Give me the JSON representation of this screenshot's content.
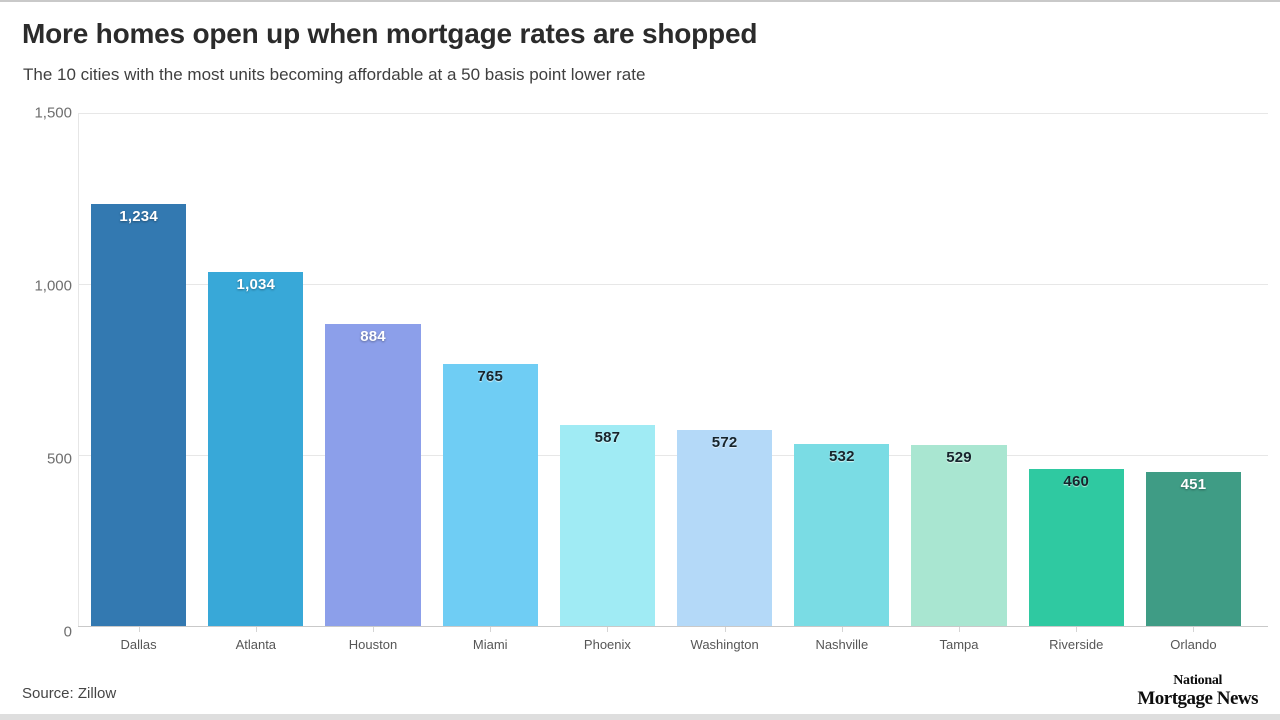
{
  "header": {
    "title": "More homes open up when mortgage rates are shopped",
    "subtitle": "The 10 cities with the most units becoming affordable at a 50 basis point lower rate"
  },
  "footer": {
    "source_label": "Source: Zillow",
    "logo_line1": "National",
    "logo_line2": "Mortgage News"
  },
  "chart_data": {
    "type": "bar",
    "title": "More homes open up when mortgage rates are shopped",
    "subtitle": "The 10 cities with the most units becoming affordable at a 50 basis point lower rate",
    "categories": [
      "Dallas",
      "Atlanta",
      "Houston",
      "Miami",
      "Phoenix",
      "Washington",
      "Nashville",
      "Tampa",
      "Riverside",
      "Orlando"
    ],
    "values": [
      1234,
      1034,
      884,
      765,
      587,
      572,
      532,
      529,
      460,
      451
    ],
    "value_labels": [
      "1,234",
      "1,034",
      "884",
      "765",
      "587",
      "572",
      "532",
      "529",
      "460",
      "451"
    ],
    "bar_colors": [
      "#3379b1",
      "#38a8d8",
      "#8c9fea",
      "#6fcdf4",
      "#a0ebf4",
      "#b4d9f8",
      "#7adce4",
      "#a9e6d1",
      "#2fc9a1",
      "#3f9c85"
    ],
    "label_text_colors": [
      "#ffffff",
      "#ffffff",
      "#ffffff",
      "#16242c",
      "#16242c",
      "#16242c",
      "#16242c",
      "#16242c",
      "#16242c",
      "#ffffff"
    ],
    "label_tones": [
      "light",
      "light",
      "light",
      "dark",
      "dark",
      "dark",
      "dark",
      "dark",
      "dark",
      "light"
    ],
    "xlabel": "",
    "ylabel": "",
    "ylim": [
      0,
      1500
    ],
    "yticks": [
      {
        "value": 0,
        "label": "0"
      },
      {
        "value": 500,
        "label": "500"
      },
      {
        "value": 1000,
        "label": "1,000"
      },
      {
        "value": 1500,
        "label": "1,500"
      }
    ],
    "grid": true,
    "legend": false,
    "source": "Zillow"
  }
}
